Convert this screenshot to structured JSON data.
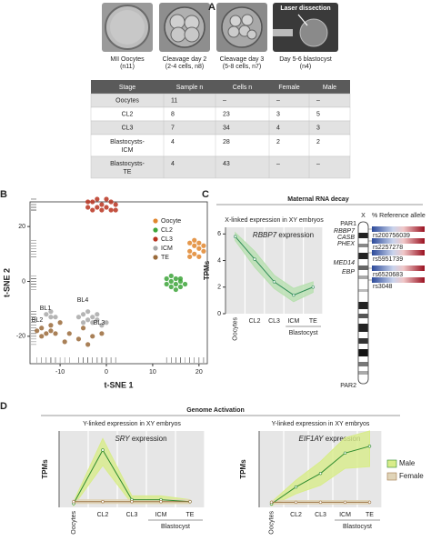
{
  "panel_labels": [
    "A",
    "B",
    "C",
    "D"
  ],
  "panel_a": {
    "images": [
      {
        "caption": [
          "MII Oocytes",
          "(n11)"
        ]
      },
      {
        "caption": [
          "Cleavage day 2",
          "(2-4 cells, n8)"
        ]
      },
      {
        "caption": [
          "Cleavage day 3",
          "(5-8 cells, n7)"
        ]
      },
      {
        "caption": [
          "Day 5-6 blastocyst",
          "(n4)"
        ]
      }
    ],
    "overlay": "Laser dissection",
    "table": {
      "header": [
        "Stage",
        "Sample n",
        "Cells n",
        "Female",
        "Male"
      ],
      "rows": [
        [
          "Oocytes",
          11,
          "–",
          "–",
          "–"
        ],
        [
          "CL2",
          8,
          23,
          3,
          5
        ],
        [
          "CL3",
          7,
          34,
          4,
          3
        ],
        [
          [
            "Blastocysts-",
            "ICM"
          ],
          4,
          28,
          2,
          2
        ],
        [
          [
            "Blastocysts-",
            "TE"
          ],
          4,
          43,
          "–",
          "–"
        ]
      ]
    }
  },
  "chart_data": [
    {
      "type": "scatter",
      "xlabel": "t-SNE 1",
      "ylabel": "t-SNE 2",
      "xlim": [
        -16.5,
        21.8
      ],
      "ylim": [
        -30,
        29
      ],
      "xticks": [
        -10,
        0,
        10,
        20
      ],
      "yticks": [
        -20,
        0,
        20
      ],
      "annotations": [
        "BL1",
        "BL2",
        "BL3",
        "BL4"
      ],
      "series": [
        {
          "name": "Oocyte",
          "color": "#e0862e",
          "x": [
            18,
            19,
            20,
            18,
            19,
            20,
            21,
            18,
            19,
            20,
            21
          ],
          "y": [
            14,
            13,
            12,
            11,
            10,
            9,
            11,
            9,
            15,
            14,
            13
          ]
        },
        {
          "name": "CL2",
          "color": "#3da53a",
          "x": [
            13,
            14,
            15,
            16,
            14,
            15,
            16,
            13,
            17,
            14,
            15,
            16
          ],
          "y": [
            1,
            0,
            -1,
            0,
            -2,
            1,
            -2,
            -1,
            -1,
            2,
            -3,
            1
          ]
        },
        {
          "name": "CL3",
          "color": "#b8321e",
          "x": [
            -4,
            -3,
            -2,
            -1,
            0,
            1,
            2,
            -3,
            -1,
            1,
            0,
            -2,
            2,
            -4
          ],
          "y": [
            27,
            29,
            30,
            28,
            27,
            29,
            28,
            26,
            26,
            26,
            30,
            27,
            26,
            29
          ]
        },
        {
          "name": "ICM",
          "color": "#a8a8a8",
          "x": [
            -6,
            -5,
            -4,
            -3,
            -2,
            -4,
            -5,
            -3,
            -2,
            -13,
            -12,
            -11,
            -12,
            -1,
            0
          ],
          "y": [
            -13,
            -12,
            -14,
            -13,
            -12,
            -11,
            -15,
            -15,
            -14,
            -12,
            -11,
            -13,
            -13,
            -16,
            -15
          ]
        },
        {
          "name": "TE",
          "color": "#9a6a3a",
          "x": [
            -14,
            -13,
            -12,
            -14,
            -12,
            -11,
            -15,
            -8,
            -6,
            -5,
            -3,
            -9,
            -1,
            -4,
            -10
          ],
          "y": [
            -17,
            -19,
            -18,
            -20,
            -16,
            -19,
            -18,
            -19,
            -21,
            -17,
            -20,
            -22,
            -19,
            -23,
            -15
          ]
        }
      ]
    },
    {
      "type": "line",
      "section_title": "Maternal RNA decay",
      "title": "X-linked expression in XY embryos",
      "subtitle_gene": "RBBP7",
      "subtitle_text": "expression",
      "ylabel": "TPMs",
      "categories": [
        "Oocytes",
        "CL2",
        "CL3",
        "ICM",
        "TE"
      ],
      "group_label": "Blastocyst",
      "ylim": [
        0,
        6.5
      ],
      "yticks": [
        0,
        2,
        4,
        6
      ],
      "series": [
        {
          "color": "#2e8b57",
          "band_color": "#b8e0b0",
          "values": [
            5.8,
            4.1,
            2.4,
            1.4,
            2.0
          ],
          "lower": [
            5.5,
            3.5,
            1.9,
            0.9,
            1.6
          ],
          "upper": [
            6.1,
            4.7,
            2.9,
            1.9,
            2.4
          ]
        }
      ]
    },
    {
      "type": "line",
      "title": "Y-linked expression in XY embryos",
      "subtitle_gene": "SRY",
      "subtitle_text": "expression",
      "ylabel": "TPMs",
      "categories": [
        "Oocytes",
        "CL2",
        "CL3",
        "ICM",
        "TE"
      ],
      "group_label": "Blastocyst",
      "ylim": [
        0,
        4
      ],
      "series": [
        {
          "color": "#2e8b2e",
          "band_color": "#d8ec8a",
          "values": [
            0.2,
            3.0,
            0.4,
            0.4,
            0.3
          ],
          "lower": [
            0.1,
            2.2,
            0.2,
            0.2,
            0.2
          ],
          "upper": [
            0.3,
            3.6,
            0.6,
            0.6,
            0.4
          ]
        },
        {
          "color": "#a0784a",
          "band_color": "#e0d4b8",
          "values": [
            0.3,
            0.3,
            0.3,
            0.3,
            0.3
          ],
          "lower": [
            0.2,
            0.2,
            0.2,
            0.2,
            0.2
          ],
          "upper": [
            0.4,
            0.4,
            0.4,
            0.4,
            0.4
          ]
        }
      ]
    },
    {
      "type": "line",
      "title": "Y-linked expression in XY embryos",
      "subtitle_gene": "EIF1AY",
      "subtitle_text": "expression",
      "ylabel": "TPMs",
      "categories": [
        "Oocytes",
        "CL2",
        "CL3",
        "ICM",
        "TE"
      ],
      "group_label": "Blastocyst",
      "ylim": [
        0,
        4.5
      ],
      "legend": "right",
      "series": [
        {
          "name": "Male",
          "color": "#2e8b2e",
          "band_color": "#d8ec8a",
          "values": [
            0.2,
            1.2,
            2.0,
            3.2,
            3.6
          ],
          "lower": [
            0.1,
            0.8,
            1.3,
            2.3,
            2.4
          ],
          "upper": [
            0.3,
            1.6,
            2.7,
            4.1,
            4.5
          ]
        },
        {
          "name": "Female",
          "color": "#a0784a",
          "band_color": "#e0d4b8",
          "values": [
            0.3,
            0.3,
            0.3,
            0.3,
            0.3
          ],
          "lower": [
            0.2,
            0.2,
            0.2,
            0.2,
            0.2
          ],
          "upper": [
            0.4,
            0.4,
            0.4,
            0.4,
            0.4
          ]
        }
      ]
    }
  ],
  "chromosome": {
    "name": "X",
    "top": "PAR1",
    "bottom": "PAR2",
    "header": "% Reference allele",
    "genes": [
      "RBBP7",
      "CASB",
      "PHEX",
      "MED14",
      "EBP"
    ],
    "snps": [
      "rs200756039",
      "rs2257278",
      "rs5951739",
      "rs6520683",
      "rs3048"
    ]
  },
  "panel_d": {
    "title": "Genome Activation"
  }
}
